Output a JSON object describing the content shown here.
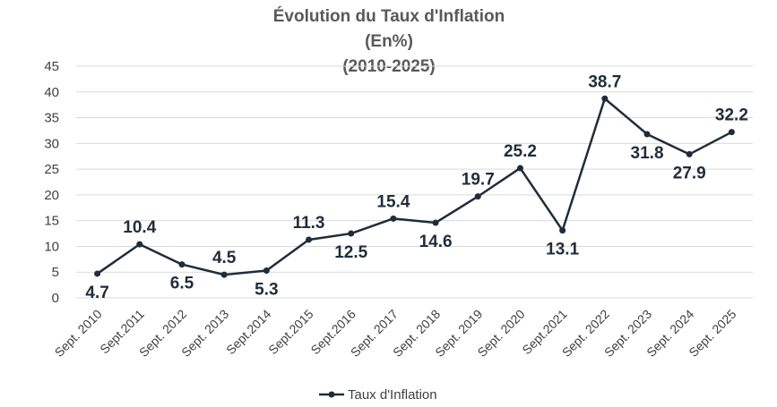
{
  "chart_data": {
    "type": "line",
    "title_lines": [
      "Évolution du Taux d'Inflation",
      "(En%)",
      "(2010-2025)"
    ],
    "categories": [
      "Sept. 2010",
      "Sept.2011",
      "Sept. 2012",
      "Sept. 2013",
      "Sept.2014",
      "Sept.2015",
      "Sept.2016",
      "Sept. 2017",
      "Sept. 2018",
      "Sept. 2019",
      "Sept. 2020",
      "Sept.2021",
      "Sept. 2022",
      "Sept. 2023",
      "Sept. 2024",
      "Sept. 2025"
    ],
    "series": [
      {
        "name": "Taux d'Inflation",
        "values": [
          4.7,
          10.4,
          6.5,
          4.5,
          5.3,
          11.3,
          12.5,
          15.4,
          14.6,
          19.7,
          25.2,
          13.1,
          38.7,
          31.8,
          27.9,
          32.2
        ],
        "labels": [
          "4.7",
          "10.4",
          "6.5",
          "4.5",
          "5.3",
          "11.3",
          "12.5",
          "15.4",
          "14.6",
          "19.7",
          "25.2",
          "13.1",
          "38.7",
          "31.8",
          "27.9",
          "32.2"
        ],
        "label_positions": [
          "below",
          "above",
          "below",
          "above",
          "below",
          "above",
          "below",
          "above",
          "below",
          "above",
          "above",
          "below",
          "above",
          "below",
          "below",
          "above"
        ]
      }
    ],
    "ylim": [
      0,
      45
    ],
    "yticks": [
      0,
      5,
      10,
      15,
      20,
      25,
      30,
      35,
      40,
      45
    ],
    "grid": true,
    "legend_position": "bottom",
    "colors": {
      "line": "#1f2d3a",
      "grid": "#d9d9d9",
      "title": "#595959",
      "label": "#1f2d3a"
    }
  }
}
